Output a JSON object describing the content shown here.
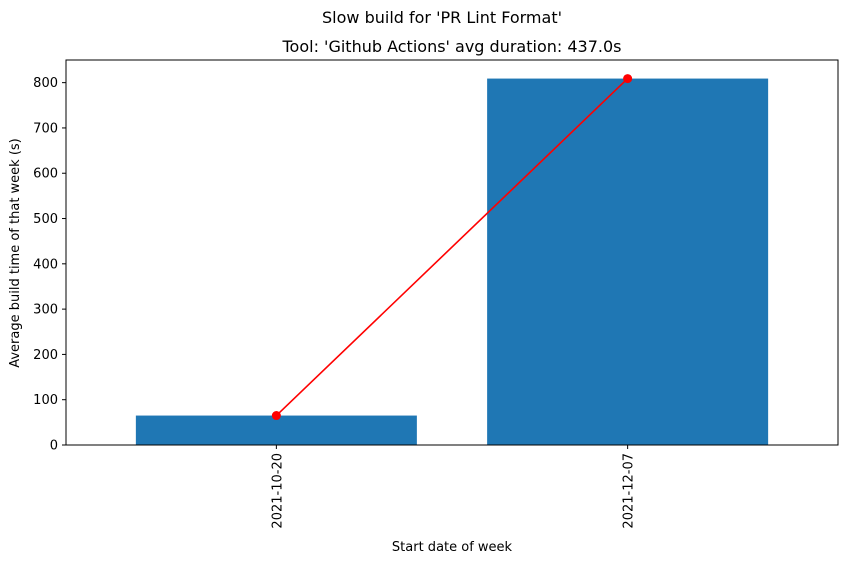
{
  "chart_data": {
    "type": "bar",
    "suptitle": "Slow build for 'PR Lint Format'",
    "title": "Tool: 'Github Actions' avg duration: 437.0s",
    "xlabel": "Start date of week",
    "ylabel": "Average build time of that week (s)",
    "categories": [
      "2021-10-20",
      "2021-12-07"
    ],
    "values": [
      65,
      809
    ],
    "line_values": [
      65,
      809
    ],
    "ylim": [
      0,
      850
    ],
    "yticks": [
      0,
      100,
      200,
      300,
      400,
      500,
      600,
      700,
      800
    ],
    "colors": {
      "bar": "#1f77b4",
      "line": "#ff0000"
    },
    "grid": false,
    "legend": false
  }
}
